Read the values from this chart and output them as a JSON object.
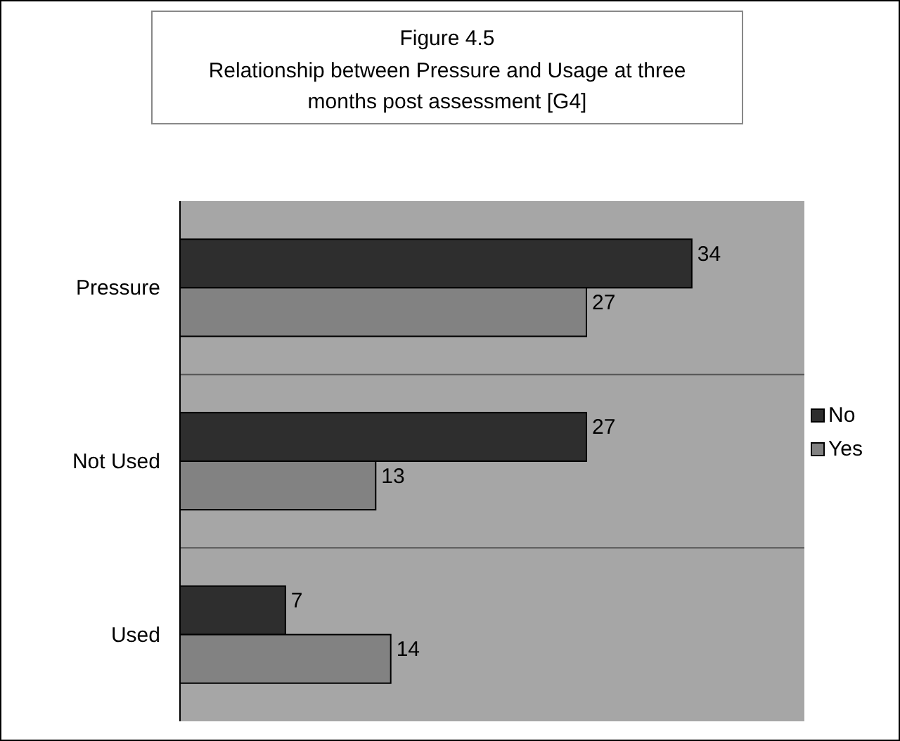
{
  "chart_data": {
    "type": "bar",
    "orientation": "horizontal",
    "title": "Figure 4.5",
    "subtitle": "Relationship between Pressure and Usage at three months post assessment [G4]",
    "categories": [
      "Pressure",
      "Not Used",
      "Used"
    ],
    "series": [
      {
        "name": "No",
        "color": "#2e2e2e",
        "values": [
          34,
          27,
          7
        ]
      },
      {
        "name": "Yes",
        "color": "#828282",
        "values": [
          27,
          13,
          14
        ]
      }
    ],
    "data_labels": true,
    "grid": "y",
    "legend": "right"
  }
}
